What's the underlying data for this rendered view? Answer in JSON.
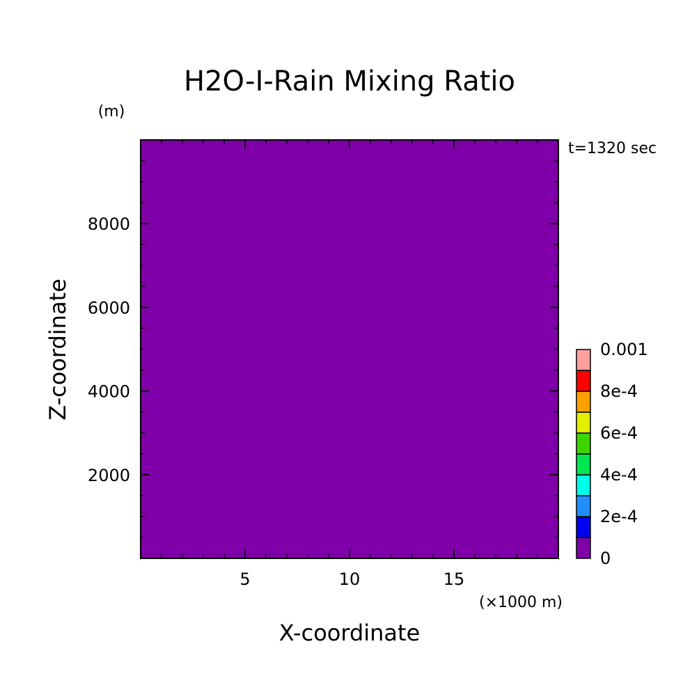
{
  "chart_data": {
    "type": "heatmap",
    "title": "H2O-I-Rain Mixing Ratio",
    "xlabel": "X-coordinate",
    "ylabel": "Z-coordinate",
    "x_unit": "(×1000 m)",
    "y_unit": "(m)",
    "annotation": "t=1320 sec",
    "xlim": [
      0,
      20
    ],
    "ylim": [
      0,
      10000
    ],
    "x_ticks": [
      5,
      10,
      15
    ],
    "y_ticks": [
      2000,
      4000,
      6000,
      8000
    ],
    "x_tick_labels": [
      "5",
      "10",
      "15"
    ],
    "y_tick_labels": [
      "2000",
      "4000",
      "6000",
      "8000"
    ],
    "field_value": 0,
    "grid": false,
    "colorbar": {
      "min": 0,
      "max": 0.001,
      "colors": [
        "#7f00a8",
        "#0000ee",
        "#1f8fff",
        "#00ffe8",
        "#00e650",
        "#3ed400",
        "#e3ee00",
        "#ffa000",
        "#ff0000",
        "#ffa0a0"
      ],
      "labels": [
        "0",
        "2e-4",
        "4e-4",
        "6e-4",
        "8e-4",
        "0.001"
      ],
      "label_values": [
        0,
        0.0002,
        0.0004,
        0.0006,
        0.0008,
        0.001
      ]
    }
  }
}
